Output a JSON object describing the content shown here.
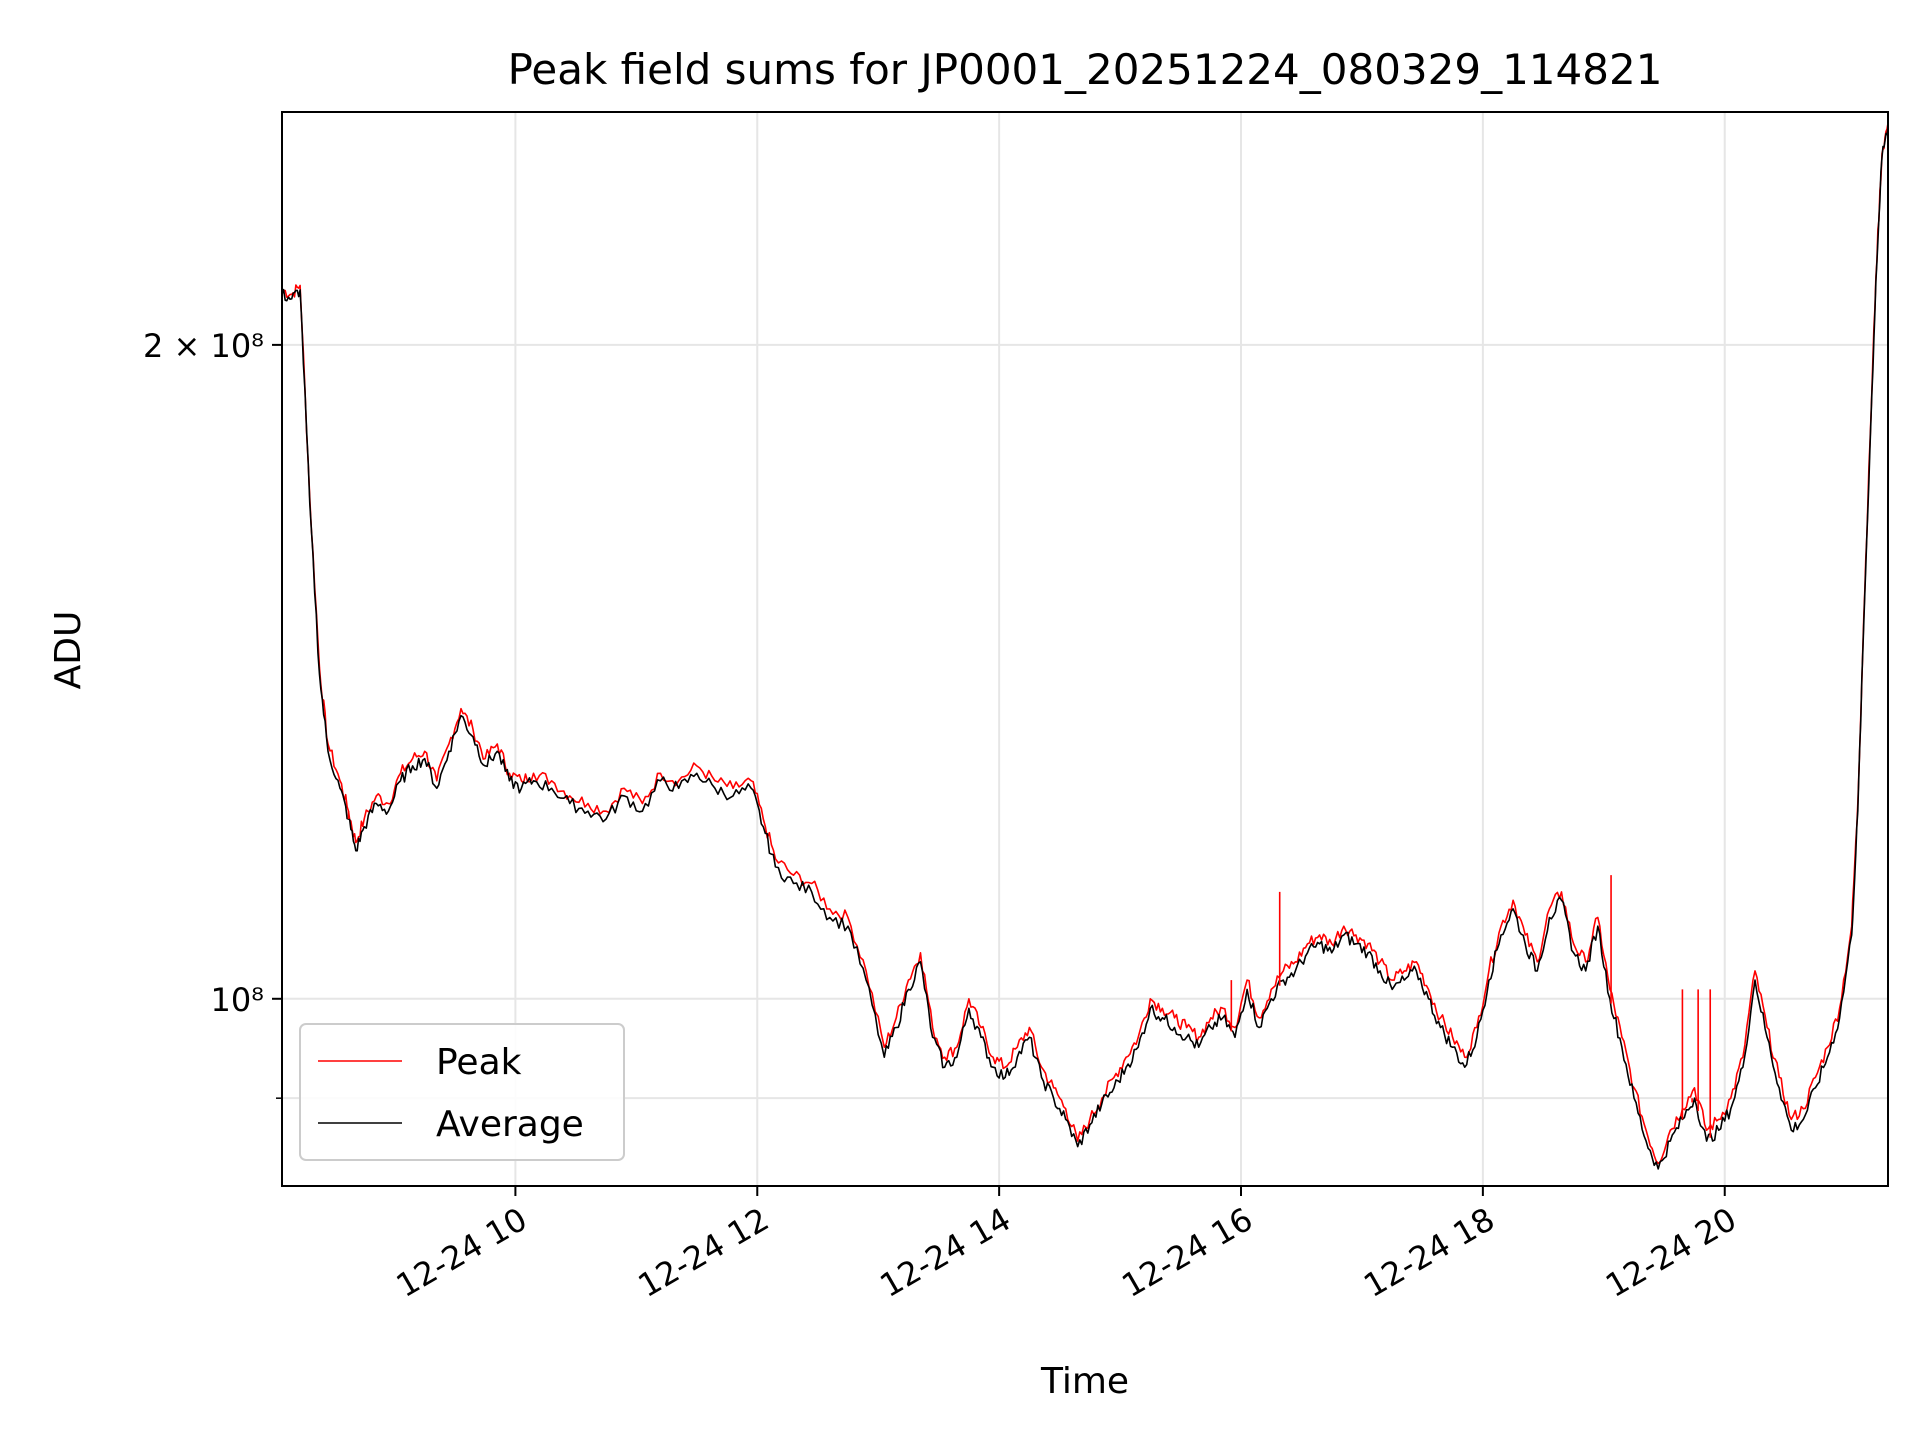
{
  "chart_data": {
    "type": "line",
    "title": "Peak field sums for JP0001_20251224_080329_114821",
    "xlabel": "Time",
    "ylabel": "ADU",
    "y_scale": "log",
    "xlim_hours": [
      8.07,
      21.35
    ],
    "ylim": [
      82000000,
      256000000
    ],
    "grid": true,
    "legend_position": "lower-left",
    "x_ticks": [
      {
        "value": 10,
        "label": "12-24 10"
      },
      {
        "value": 12,
        "label": "12-24 12"
      },
      {
        "value": 14,
        "label": "12-24 14"
      },
      {
        "value": 16,
        "label": "12-24 16"
      },
      {
        "value": 18,
        "label": "12-24 18"
      },
      {
        "value": 20,
        "label": "12-24 20"
      }
    ],
    "y_ticks_major": [
      {
        "value": 100000000,
        "label": "10⁸"
      },
      {
        "value": 200000000,
        "label": "2 × 10⁸"
      }
    ],
    "y_ticks_minor": [
      90000000
    ],
    "series": [
      {
        "name": "Peak",
        "color": "#ff0000",
        "x": [
          8.07,
          8.15,
          8.22,
          8.3,
          8.38,
          8.45,
          8.55,
          8.62,
          8.68,
          8.75,
          8.85,
          8.95,
          9.05,
          9.15,
          9.25,
          9.35,
          9.45,
          9.55,
          9.65,
          9.75,
          9.85,
          9.95,
          10.05,
          10.15,
          10.3,
          10.45,
          10.6,
          10.75,
          10.9,
          11.05,
          11.2,
          11.35,
          11.5,
          11.65,
          11.8,
          11.95,
          12.05,
          12.15,
          12.3,
          12.45,
          12.6,
          12.75,
          12.9,
          13.05,
          13.15,
          13.25,
          13.35,
          13.45,
          13.55,
          13.65,
          13.75,
          13.85,
          13.95,
          14.05,
          14.15,
          14.25,
          14.35,
          14.45,
          14.55,
          14.65,
          14.75,
          14.85,
          14.95,
          15.05,
          15.15,
          15.25,
          15.35,
          15.45,
          15.55,
          15.65,
          15.75,
          15.85,
          15.95,
          16.05,
          16.15,
          16.25,
          16.35,
          16.45,
          16.55,
          16.65,
          16.75,
          16.85,
          16.95,
          17.05,
          17.15,
          17.25,
          17.35,
          17.45,
          17.55,
          17.65,
          17.75,
          17.85,
          17.95,
          18.05,
          18.15,
          18.25,
          18.35,
          18.45,
          18.55,
          18.65,
          18.75,
          18.85,
          18.95,
          19.05,
          19.15,
          19.25,
          19.35,
          19.45,
          19.55,
          19.65,
          19.75,
          19.85,
          19.95,
          20.05,
          20.15,
          20.25,
          20.35,
          20.45,
          20.55,
          20.65,
          20.75,
          20.85,
          20.95,
          21.05,
          21.1,
          21.15,
          21.2,
          21.25,
          21.3,
          21.35
        ],
        "values": [
          212000000.0,
          211000000.0,
          213000000.0,
          170000000.0,
          142000000.0,
          131000000.0,
          126000000.0,
          122000000.0,
          118000000.0,
          121000000.0,
          124000000.0,
          123000000.0,
          127000000.0,
          129000000.0,
          130000000.0,
          126000000.0,
          131000000.0,
          136000000.0,
          133000000.0,
          129000000.0,
          131000000.0,
          127000000.0,
          126000000.0,
          127000000.0,
          126000000.0,
          124000000.0,
          123000000.0,
          122000000.0,
          125000000.0,
          123000000.0,
          127000000.0,
          126000000.0,
          128000000.0,
          126000000.0,
          125000000.0,
          126000000.0,
          121000000.0,
          116000000.0,
          114000000.0,
          113000000.0,
          110000000.0,
          109000000.0,
          103000000.0,
          95000000.0,
          98000000.0,
          102000000.0,
          105000000.0,
          97000000.0,
          94000000.0,
          95000000.0,
          100000000.0,
          97000000.0,
          94000000.0,
          93000000.0,
          95000000.0,
          97000000.0,
          93000000.0,
          91000000.0,
          89000000.0,
          86000000.0,
          88000000.0,
          90000000.0,
          92000000.0,
          94000000.0,
          96000000.0,
          100000000.0,
          99000000.0,
          98000000.0,
          97000000.0,
          96000000.0,
          98000000.0,
          99000000.0,
          97000000.0,
          102000000.0,
          98000000.0,
          101000000.0,
          103000000.0,
          104000000.0,
          106000000.0,
          107000000.0,
          106000000.0,
          108000000.0,
          107000000.0,
          106000000.0,
          104000000.0,
          102000000.0,
          103000000.0,
          104000000.0,
          101000000.0,
          98000000.0,
          96000000.0,
          94000000.0,
          97000000.0,
          103000000.0,
          108000000.0,
          111000000.0,
          107000000.0,
          104000000.0,
          110000000.0,
          112000000.0,
          106000000.0,
          104000000.0,
          109000000.0,
          101000000.0,
          96000000.0,
          91000000.0,
          87000000.0,
          84000000.0,
          87000000.0,
          89000000.0,
          91000000.0,
          87000000.0,
          88000000.0,
          90000000.0,
          94000000.0,
          103000000.0,
          97000000.0,
          92000000.0,
          88000000.0,
          89000000.0,
          92000000.0,
          95000000.0,
          99000000.0,
          108000000.0,
          123000000.0,
          150000000.0,
          180000000.0,
          215000000.0,
          245000000.0,
          253000000.0
        ]
      },
      {
        "name": "Average",
        "color": "#000000",
        "x": [
          8.07,
          8.15,
          8.22,
          8.3,
          8.38,
          8.45,
          8.55,
          8.62,
          8.68,
          8.75,
          8.85,
          8.95,
          9.05,
          9.15,
          9.25,
          9.35,
          9.45,
          9.55,
          9.65,
          9.75,
          9.85,
          9.95,
          10.05,
          10.15,
          10.3,
          10.45,
          10.6,
          10.75,
          10.9,
          11.05,
          11.2,
          11.35,
          11.5,
          11.65,
          11.8,
          11.95,
          12.05,
          12.15,
          12.3,
          12.45,
          12.6,
          12.75,
          12.9,
          13.05,
          13.15,
          13.25,
          13.35,
          13.45,
          13.55,
          13.65,
          13.75,
          13.85,
          13.95,
          14.05,
          14.15,
          14.25,
          14.35,
          14.45,
          14.55,
          14.65,
          14.75,
          14.85,
          14.95,
          15.05,
          15.15,
          15.25,
          15.35,
          15.45,
          15.55,
          15.65,
          15.75,
          15.85,
          15.95,
          16.05,
          16.15,
          16.25,
          16.35,
          16.45,
          16.55,
          16.65,
          16.75,
          16.85,
          16.95,
          17.05,
          17.15,
          17.25,
          17.35,
          17.45,
          17.55,
          17.65,
          17.75,
          17.85,
          17.95,
          18.05,
          18.15,
          18.25,
          18.35,
          18.45,
          18.55,
          18.65,
          18.75,
          18.85,
          18.95,
          19.05,
          19.15,
          19.25,
          19.35,
          19.45,
          19.55,
          19.65,
          19.75,
          19.85,
          19.95,
          20.05,
          20.15,
          20.25,
          20.35,
          20.45,
          20.55,
          20.65,
          20.75,
          20.85,
          20.95,
          21.05,
          21.1,
          21.15,
          21.2,
          21.25,
          21.3,
          21.35
        ],
        "values": [
          211000000.0,
          210000000.0,
          212000000.0,
          169000000.0,
          141000000.0,
          130000000.0,
          125000000.0,
          121000000.0,
          117000000.0,
          120000000.0,
          123000000.0,
          122000000.0,
          126000000.0,
          128000000.0,
          129000000.0,
          125000000.0,
          130000000.0,
          135000000.0,
          132000000.0,
          128000000.0,
          130000000.0,
          126000000.0,
          125000000.0,
          126000000.0,
          125000000.0,
          123000000.0,
          122000000.0,
          121000000.0,
          124000000.0,
          122000000.0,
          126000000.0,
          125000000.0,
          127000000.0,
          125000000.0,
          124000000.0,
          125000000.0,
          120000000.0,
          115000000.0,
          113000000.0,
          112000000.0,
          109000000.0,
          108000000.0,
          102000000.0,
          94000000.0,
          97000000.0,
          101000000.0,
          104000000.0,
          96000000.0,
          93000000.0,
          94000000.0,
          99000000.0,
          96000000.0,
          93000000.0,
          92000000.0,
          94000000.0,
          96000000.0,
          92000000.0,
          90000000.0,
          88000000.0,
          85500000.0,
          87500000.0,
          89500000.0,
          91000000.0,
          93000000.0,
          95000000.0,
          99000000.0,
          98000000.0,
          97000000.0,
          96000000.0,
          95000000.0,
          97000000.0,
          98000000.0,
          96000000.0,
          101000000.0,
          97000000.0,
          100000000.0,
          102000000.0,
          103000000.0,
          105000000.0,
          106000000.0,
          105000000.0,
          107000000.0,
          106000000.0,
          105000000.0,
          103000000.0,
          101000000.0,
          102000000.0,
          103000000.0,
          100000000.0,
          97000000.0,
          95000000.0,
          93000000.0,
          96000000.0,
          102000000.0,
          107000000.0,
          110000000.0,
          106000000.0,
          103000000.0,
          109000000.0,
          111000000.0,
          105000000.0,
          103000000.0,
          108000000.0,
          100000000.0,
          95000000.0,
          90000000.0,
          86000000.0,
          83500000.0,
          86000000.0,
          88000000.0,
          90000000.0,
          86000000.0,
          87000000.0,
          89000000.0,
          93000000.0,
          102000000.0,
          96000000.0,
          91000000.0,
          87000000.0,
          88000000.0,
          91000000.0,
          94000000.0,
          98000000.0,
          107000000.0,
          122000000.0,
          149000000.0,
          179000000.0,
          214000000.0,
          244000000.0,
          252000000.0
        ]
      }
    ],
    "spikes": [
      {
        "series": "Peak",
        "x": 8.62,
        "value": 122000000.0
      },
      {
        "series": "Peak",
        "x": 15.92,
        "value": 102000000.0
      },
      {
        "series": "Peak",
        "x": 16.32,
        "value": 112000000.0
      },
      {
        "series": "Peak",
        "x": 19.06,
        "value": 114000000.0
      },
      {
        "series": "Peak",
        "x": 19.65,
        "value": 101000000.0
      },
      {
        "series": "Peak",
        "x": 19.73,
        "value": 90000000.0
      },
      {
        "series": "Peak",
        "x": 19.78,
        "value": 101000000.0
      },
      {
        "series": "Peak",
        "x": 19.88,
        "value": 101000000.0
      },
      {
        "series": "Peak",
        "x": 20.25,
        "value": 102000000.0
      }
    ]
  }
}
